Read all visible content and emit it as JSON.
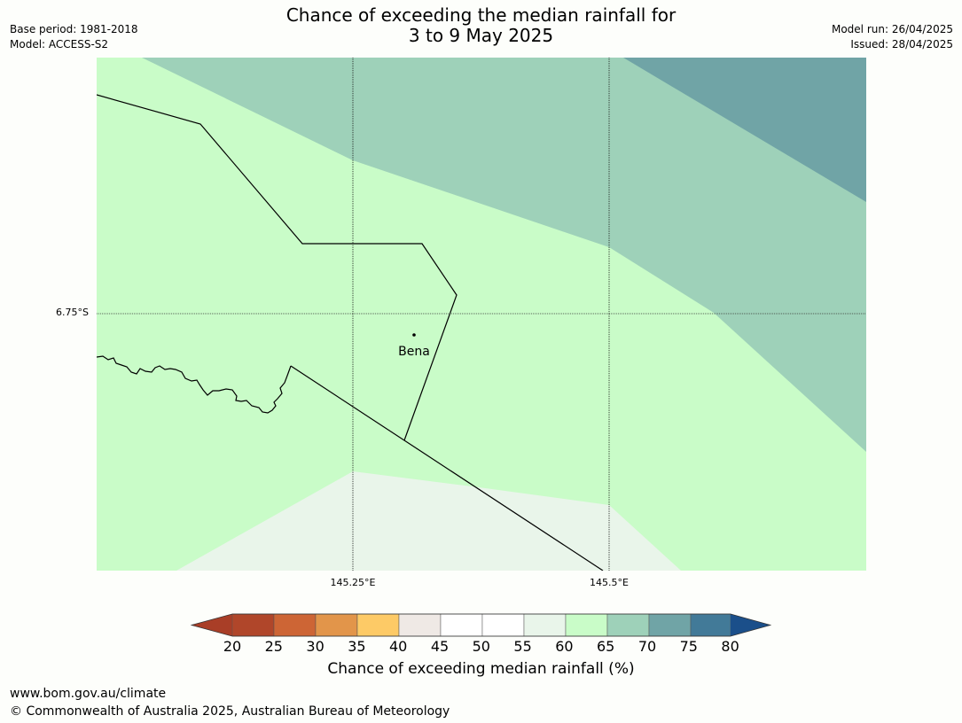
{
  "title_line1": "Chance of exceeding the median rainfall for",
  "title_line2": "3 to 9 May 2025",
  "meta_left": [
    "Base period: 1981-2018",
    "Model: ACCESS-S2"
  ],
  "meta_right": [
    "Model run: 26/04/2025",
    "Issued: 28/04/2025"
  ],
  "map": {
    "lat_labels": [
      "6.75°S"
    ],
    "lon_labels": [
      "145.25°E",
      "145.5°E"
    ],
    "place": "Bena",
    "zone_colors": {
      "55-60": "#e9f5ea",
      "60-65": "#c9fcc8",
      "65-70": "#9ed1b9",
      "70-75": "#70a4a6"
    }
  },
  "colorbar": {
    "ticks": [
      "20",
      "25",
      "30",
      "35",
      "40",
      "45",
      "50",
      "55",
      "60",
      "65",
      "70",
      "75",
      "80"
    ],
    "colors": [
      "#a93e27",
      "#b0462a",
      "#cd6535",
      "#e2954a",
      "#fdca66",
      "#efe9e5",
      "#ffffff",
      "#ffffff",
      "#e9f5ea",
      "#c9fcc8",
      "#9ed1b9",
      "#70a4a6",
      "#427a98",
      "#1b4f8a"
    ],
    "label": "Chance of exceeding median rainfall (%)"
  },
  "footer": {
    "url": "www.bom.gov.au/climate",
    "copyright": "© Commonwealth of Australia 2025, Australian Bureau of Meteorology"
  }
}
